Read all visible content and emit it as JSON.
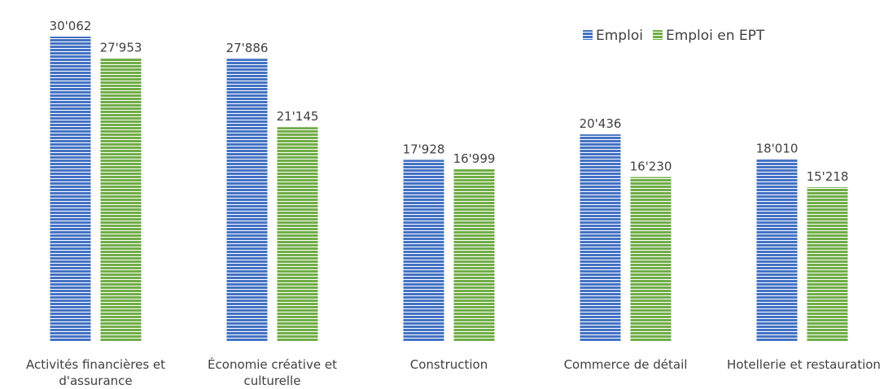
{
  "chart_data": {
    "type": "bar",
    "categories": [
      "Activités financières et d'assurance",
      "Économie créative et culturelle",
      "Construction",
      "Commerce de détail",
      "Hotellerie et restauration"
    ],
    "series": [
      {
        "name": "Emploi",
        "color": "#4472c4",
        "values": [
          30062,
          27886,
          17928,
          20436,
          18010
        ],
        "value_labels": [
          "30'062",
          "27'886",
          "17'928",
          "20'436",
          "18'010"
        ]
      },
      {
        "name": "Emploi en EPT",
        "color": "#70ad47",
        "values": [
          27953,
          21145,
          16999,
          16230,
          15218
        ],
        "value_labels": [
          "27'953",
          "21'145",
          "16'999",
          "16'230",
          "15'218"
        ]
      }
    ],
    "legend": "top-right"
  }
}
